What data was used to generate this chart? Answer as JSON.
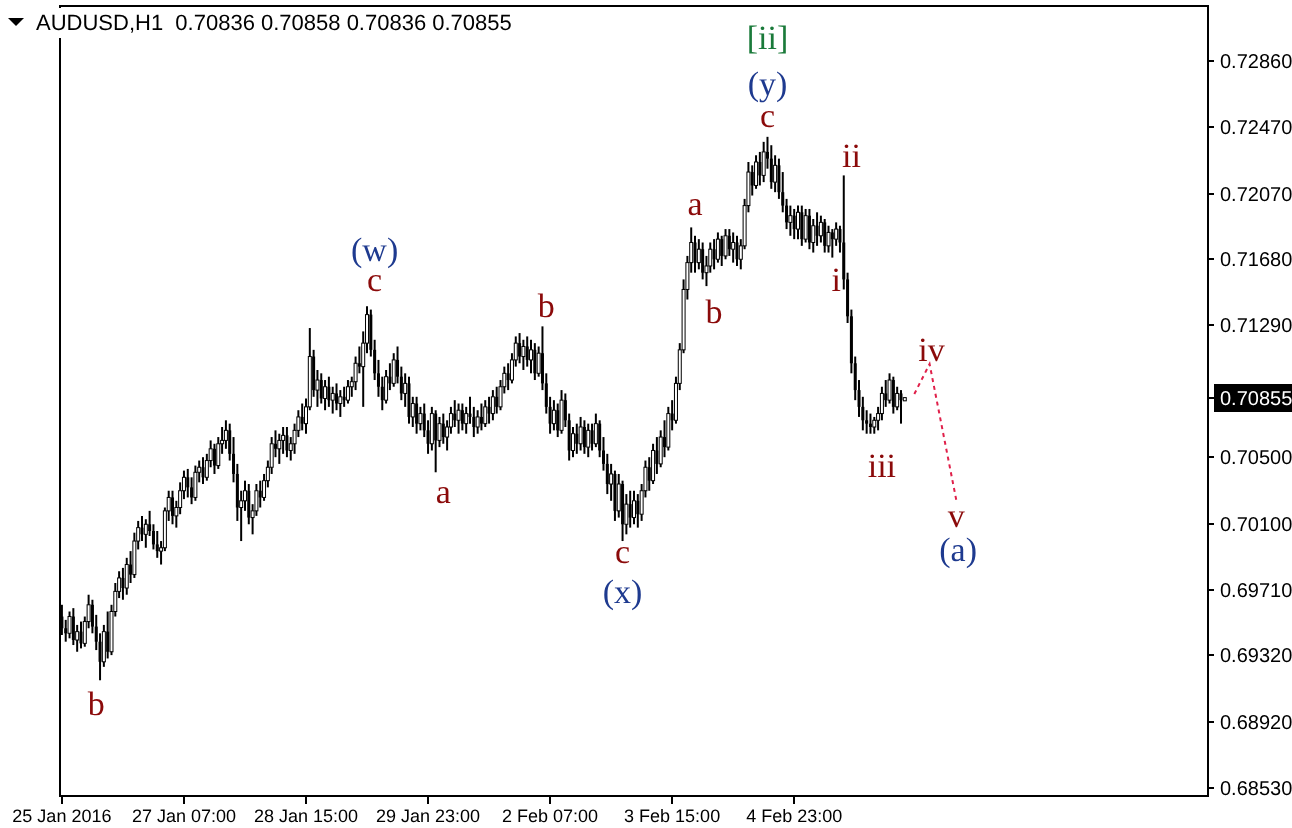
{
  "chart_data": {
    "type": "candlestick",
    "title": "AUDUSD,H1  0.70836 0.70858 0.70836 0.70855",
    "color": "#000000",
    "categories": [
      "25 Jan 2016",
      null,
      null,
      null,
      null,
      null,
      null,
      null,
      null,
      null,
      null,
      null,
      null,
      null,
      null,
      null,
      null,
      null,
      null,
      null,
      null,
      null,
      null,
      null,
      null,
      null,
      null,
      null,
      null,
      null,
      null,
      null,
      "27 Jan 07:00",
      null,
      null,
      null,
      null,
      null,
      null,
      null,
      null,
      null,
      null,
      null,
      null,
      null,
      null,
      null,
      null,
      null,
      null,
      null,
      null,
      null,
      null,
      null,
      null,
      null,
      null,
      null,
      null,
      null,
      null,
      null,
      "28 Jan 15:00",
      null,
      null,
      null,
      null,
      null,
      null,
      null,
      null,
      null,
      null,
      null,
      null,
      null,
      null,
      null,
      null,
      null,
      null,
      null,
      null,
      null,
      null,
      null,
      null,
      null,
      null,
      null,
      null,
      null,
      null,
      null,
      "29 Jan 23:00",
      null,
      null,
      null,
      null,
      null,
      null,
      null,
      null,
      null,
      null,
      null,
      null,
      null,
      null,
      null,
      null,
      null,
      null,
      null,
      null,
      null,
      null,
      null,
      null,
      null,
      null,
      null,
      null,
      null,
      null,
      null,
      "2 Feb 07:00",
      null,
      null,
      null,
      null,
      null,
      null,
      null,
      null,
      null,
      null,
      null,
      null,
      null,
      null,
      null,
      null,
      null,
      null,
      null,
      null,
      null,
      null,
      null,
      null,
      null,
      null,
      null,
      null,
      null,
      null,
      null,
      "3 Feb 15:00",
      null,
      null,
      null,
      null,
      null,
      null,
      null,
      null,
      null,
      null,
      null,
      null,
      null,
      null,
      null,
      null,
      null,
      null,
      null,
      null,
      null,
      null,
      null,
      null,
      null,
      null,
      null,
      null,
      null,
      null,
      null,
      "4 Feb 23:00",
      null,
      null,
      null,
      null,
      null,
      null,
      null,
      null,
      null,
      null,
      null,
      null,
      null,
      null,
      null,
      null,
      null,
      null,
      null,
      null,
      null,
      null,
      null,
      null,
      null,
      null,
      null,
      null,
      null,
      null,
      null,
      null,
      null,
      null,
      null,
      null,
      null,
      null,
      null,
      null,
      null,
      null,
      null,
      null,
      null,
      null,
      null,
      null,
      null,
      null,
      null,
      null,
      null,
      null,
      null,
      null,
      null,
      null,
      null,
      null,
      null,
      null,
      null,
      null,
      null,
      null,
      null,
      null,
      null,
      null,
      null,
      null,
      null,
      null,
      null,
      null,
      null,
      null,
      null,
      null,
      null,
      null,
      null,
      null,
      null,
      null,
      null,
      null,
      null,
      null,
      null,
      null,
      null,
      null,
      null,
      null,
      null,
      null,
      null,
      null,
      null,
      null,
      null,
      null,
      null,
      null,
      null,
      null
    ],
    "ohlc": [
      [
        0.6955,
        0.6962,
        0.6944,
        0.6948
      ],
      [
        0.6948,
        0.6953,
        0.694,
        0.6945
      ],
      [
        0.6945,
        0.6958,
        0.6942,
        0.6955
      ],
      [
        0.6955,
        0.696,
        0.6938,
        0.6941
      ],
      [
        0.6941,
        0.695,
        0.6934,
        0.6946
      ],
      [
        0.6946,
        0.6952,
        0.6936,
        0.6939
      ],
      [
        0.6939,
        0.6955,
        0.6937,
        0.6952
      ],
      [
        0.6952,
        0.6968,
        0.6948,
        0.6962
      ],
      [
        0.6962,
        0.6965,
        0.6945,
        0.6949
      ],
      [
        0.6949,
        0.6956,
        0.6935,
        0.694
      ],
      [
        0.694,
        0.6945,
        0.6917,
        0.6928
      ],
      [
        0.6928,
        0.695,
        0.6925,
        0.6946
      ],
      [
        0.6946,
        0.6958,
        0.693,
        0.6934
      ],
      [
        0.6934,
        0.6962,
        0.6932,
        0.6958
      ],
      [
        0.6958,
        0.6975,
        0.6955,
        0.697
      ],
      [
        0.697,
        0.6982,
        0.6966,
        0.6978
      ],
      [
        0.6978,
        0.6984,
        0.6965,
        0.6972
      ],
      [
        0.6972,
        0.699,
        0.6968,
        0.6986
      ],
      [
        0.6986,
        0.6994,
        0.6975,
        0.698
      ],
      [
        0.698,
        0.7005,
        0.6978,
        0.7
      ],
      [
        0.7,
        0.7012,
        0.6995,
        0.7008
      ],
      [
        0.7008,
        0.7015,
        0.7,
        0.7004
      ],
      [
        0.7004,
        0.7013,
        0.6996,
        0.701
      ],
      [
        0.701,
        0.7018,
        0.7003,
        0.7006
      ],
      [
        0.7006,
        0.701,
        0.6995,
        0.6998
      ],
      [
        0.6998,
        0.7006,
        0.699,
        0.6994
      ],
      [
        0.6994,
        0.7,
        0.6986,
        0.6996
      ],
      [
        0.6996,
        0.702,
        0.6994,
        0.7018
      ],
      [
        0.7018,
        0.703,
        0.7012,
        0.7026
      ],
      [
        0.7026,
        0.703,
        0.701,
        0.7015
      ],
      [
        0.7015,
        0.7024,
        0.7008,
        0.702
      ],
      [
        0.702,
        0.7035,
        0.7016,
        0.703
      ],
      [
        0.703,
        0.7042,
        0.7025,
        0.7038
      ],
      [
        0.7038,
        0.7043,
        0.7026,
        0.7032
      ],
      [
        0.7032,
        0.7038,
        0.7022,
        0.7026
      ],
      [
        0.7026,
        0.7045,
        0.7024,
        0.7041
      ],
      [
        0.7041,
        0.7048,
        0.7035,
        0.7044
      ],
      [
        0.7044,
        0.705,
        0.7034,
        0.7038
      ],
      [
        0.7038,
        0.7052,
        0.7036,
        0.7048
      ],
      [
        0.7048,
        0.706,
        0.7044,
        0.7055
      ],
      [
        0.7055,
        0.7058,
        0.704,
        0.7045
      ],
      [
        0.7045,
        0.7062,
        0.7043,
        0.7058
      ],
      [
        0.7058,
        0.7068,
        0.7052,
        0.706
      ],
      [
        0.706,
        0.7072,
        0.7055,
        0.7066
      ],
      [
        0.7066,
        0.707,
        0.7048,
        0.7052
      ],
      [
        0.7052,
        0.7062,
        0.7035,
        0.704
      ],
      [
        0.704,
        0.7046,
        0.7012,
        0.702
      ],
      [
        0.702,
        0.703,
        0.7,
        0.7024
      ],
      [
        0.7024,
        0.7036,
        0.7018,
        0.703
      ],
      [
        0.703,
        0.7034,
        0.701,
        0.7014
      ],
      [
        0.7014,
        0.7022,
        0.7004,
        0.7018
      ],
      [
        0.7018,
        0.7034,
        0.7015,
        0.703
      ],
      [
        0.703,
        0.7036,
        0.702,
        0.7026
      ],
      [
        0.7026,
        0.704,
        0.7024,
        0.7036
      ],
      [
        0.7036,
        0.7048,
        0.7032,
        0.7044
      ],
      [
        0.7044,
        0.7062,
        0.704,
        0.7058
      ],
      [
        0.7058,
        0.7066,
        0.705,
        0.7055
      ],
      [
        0.7055,
        0.7064,
        0.7046,
        0.706
      ],
      [
        0.706,
        0.7068,
        0.7052,
        0.7063
      ],
      [
        0.7063,
        0.7068,
        0.705,
        0.7054
      ],
      [
        0.7054,
        0.7062,
        0.7048,
        0.7058
      ],
      [
        0.7058,
        0.707,
        0.7052,
        0.7066
      ],
      [
        0.7066,
        0.7078,
        0.7062,
        0.7074
      ],
      [
        0.7074,
        0.7082,
        0.7066,
        0.707
      ],
      [
        0.707,
        0.7085,
        0.7064,
        0.708
      ],
      [
        0.708,
        0.7127,
        0.7078,
        0.711
      ],
      [
        0.711,
        0.7114,
        0.7086,
        0.709
      ],
      [
        0.709,
        0.7102,
        0.708,
        0.7096
      ],
      [
        0.7096,
        0.71,
        0.7082,
        0.7085
      ],
      [
        0.7085,
        0.7096,
        0.7078,
        0.7092
      ],
      [
        0.7092,
        0.7098,
        0.708,
        0.7084
      ],
      [
        0.7084,
        0.7092,
        0.7076,
        0.7088
      ],
      [
        0.7088,
        0.7094,
        0.7078,
        0.7082
      ],
      [
        0.7082,
        0.709,
        0.7074,
        0.7086
      ],
      [
        0.7086,
        0.7092,
        0.708,
        0.7084
      ],
      [
        0.7084,
        0.7096,
        0.7082,
        0.7092
      ],
      [
        0.7092,
        0.7098,
        0.7086,
        0.7095
      ],
      [
        0.7095,
        0.711,
        0.709,
        0.7106
      ],
      [
        0.7106,
        0.7116,
        0.71,
        0.7104
      ],
      [
        0.7104,
        0.7125,
        0.708,
        0.7118
      ],
      [
        0.7118,
        0.714,
        0.7112,
        0.7135
      ],
      [
        0.7135,
        0.7138,
        0.711,
        0.7114
      ],
      [
        0.7114,
        0.712,
        0.7096,
        0.71
      ],
      [
        0.71,
        0.7108,
        0.7086,
        0.7092
      ],
      [
        0.7092,
        0.7098,
        0.7078,
        0.7084
      ],
      [
        0.7084,
        0.7102,
        0.7082,
        0.7098
      ],
      [
        0.7098,
        0.7106,
        0.709,
        0.7094
      ],
      [
        0.7094,
        0.7112,
        0.7092,
        0.7108
      ],
      [
        0.7108,
        0.7116,
        0.7094,
        0.7098
      ],
      [
        0.7098,
        0.7104,
        0.7084,
        0.7088
      ],
      [
        0.7088,
        0.71,
        0.708,
        0.7094
      ],
      [
        0.7094,
        0.7098,
        0.707,
        0.7074
      ],
      [
        0.7074,
        0.7086,
        0.7068,
        0.7082
      ],
      [
        0.7082,
        0.7086,
        0.7064,
        0.707
      ],
      [
        0.707,
        0.708,
        0.7066,
        0.7076
      ],
      [
        0.7076,
        0.7082,
        0.7062,
        0.7066
      ],
      [
        0.7066,
        0.7072,
        0.7052,
        0.7058
      ],
      [
        0.7058,
        0.708,
        0.7054,
        0.7076
      ],
      [
        0.7076,
        0.7078,
        0.7041,
        0.706
      ],
      [
        0.706,
        0.7074,
        0.7056,
        0.707
      ],
      [
        0.707,
        0.7076,
        0.7058,
        0.7062
      ],
      [
        0.7062,
        0.7072,
        0.7054,
        0.7068
      ],
      [
        0.7068,
        0.708,
        0.7064,
        0.7076
      ],
      [
        0.7076,
        0.7084,
        0.7068,
        0.7072
      ],
      [
        0.7072,
        0.7082,
        0.7064,
        0.7078
      ],
      [
        0.7078,
        0.7082,
        0.7066,
        0.707
      ],
      [
        0.707,
        0.708,
        0.7064,
        0.7076
      ],
      [
        0.7076,
        0.7086,
        0.707,
        0.7074
      ],
      [
        0.7074,
        0.708,
        0.7062,
        0.7068
      ],
      [
        0.7068,
        0.7078,
        0.7064,
        0.7074
      ],
      [
        0.7074,
        0.7082,
        0.7066,
        0.707
      ],
      [
        0.707,
        0.7084,
        0.7068,
        0.708
      ],
      [
        0.708,
        0.7086,
        0.707,
        0.7076
      ],
      [
        0.7076,
        0.709,
        0.7072,
        0.7086
      ],
      [
        0.7086,
        0.7092,
        0.7076,
        0.708
      ],
      [
        0.708,
        0.7096,
        0.7078,
        0.7092
      ],
      [
        0.7092,
        0.7104,
        0.7088,
        0.71
      ],
      [
        0.71,
        0.7106,
        0.709,
        0.7096
      ],
      [
        0.7096,
        0.7112,
        0.7094,
        0.7108
      ],
      [
        0.7108,
        0.7122,
        0.7104,
        0.7118
      ],
      [
        0.7118,
        0.7124,
        0.7106,
        0.711
      ],
      [
        0.711,
        0.712,
        0.7102,
        0.7116
      ],
      [
        0.7116,
        0.7122,
        0.7104,
        0.7108
      ],
      [
        0.7108,
        0.712,
        0.71,
        0.7114
      ],
      [
        0.7114,
        0.7118,
        0.7096,
        0.71
      ],
      [
        0.71,
        0.7116,
        0.7098,
        0.7112
      ],
      [
        0.7112,
        0.7128,
        0.709,
        0.7094
      ],
      [
        0.7094,
        0.71,
        0.7076,
        0.708
      ],
      [
        0.708,
        0.7086,
        0.7064,
        0.707
      ],
      [
        0.707,
        0.7084,
        0.7066,
        0.7078
      ],
      [
        0.7078,
        0.7082,
        0.7062,
        0.7066
      ],
      [
        0.7066,
        0.709,
        0.7064,
        0.7084
      ],
      [
        0.7084,
        0.7088,
        0.7068,
        0.7072
      ],
      [
        0.7072,
        0.7076,
        0.7048,
        0.7054
      ],
      [
        0.7054,
        0.7068,
        0.705,
        0.7064
      ],
      [
        0.7064,
        0.707,
        0.7052,
        0.7058
      ],
      [
        0.7058,
        0.7074,
        0.7054,
        0.7068
      ],
      [
        0.7068,
        0.7072,
        0.7052,
        0.7056
      ],
      [
        0.7056,
        0.707,
        0.705,
        0.7066
      ],
      [
        0.7066,
        0.707,
        0.7054,
        0.7058
      ],
      [
        0.7058,
        0.7076,
        0.7056,
        0.707
      ],
      [
        0.707,
        0.7072,
        0.705,
        0.7054
      ],
      [
        0.7054,
        0.7062,
        0.7042,
        0.7046
      ],
      [
        0.7046,
        0.7052,
        0.7028,
        0.7034
      ],
      [
        0.7034,
        0.7046,
        0.7024,
        0.704
      ],
      [
        0.704,
        0.7042,
        0.7012,
        0.7018
      ],
      [
        0.7018,
        0.704,
        0.7014,
        0.7034
      ],
      [
        0.7034,
        0.7036,
        0.7,
        0.701
      ],
      [
        0.701,
        0.7028,
        0.7004,
        0.7022
      ],
      [
        0.7022,
        0.703,
        0.7008,
        0.7014
      ],
      [
        0.7014,
        0.703,
        0.701,
        0.7024
      ],
      [
        0.7024,
        0.7028,
        0.7008,
        0.7016
      ],
      [
        0.7016,
        0.7034,
        0.7012,
        0.703
      ],
      [
        0.703,
        0.7048,
        0.7026,
        0.7044
      ],
      [
        0.7044,
        0.705,
        0.703,
        0.7036
      ],
      [
        0.7036,
        0.7058,
        0.7034,
        0.7054
      ],
      [
        0.7054,
        0.7062,
        0.704,
        0.7046
      ],
      [
        0.7046,
        0.7066,
        0.7044,
        0.7062
      ],
      [
        0.7062,
        0.7072,
        0.705,
        0.7056
      ],
      [
        0.7056,
        0.708,
        0.7054,
        0.7076
      ],
      [
        0.7076,
        0.7084,
        0.7066,
        0.7072
      ],
      [
        0.7072,
        0.7098,
        0.707,
        0.7094
      ],
      [
        0.7094,
        0.7118,
        0.709,
        0.7114
      ],
      [
        0.7114,
        0.7156,
        0.7112,
        0.715
      ],
      [
        0.715,
        0.717,
        0.7144,
        0.7166
      ],
      [
        0.7166,
        0.7187,
        0.716,
        0.7178
      ],
      [
        0.7178,
        0.7182,
        0.716,
        0.7166
      ],
      [
        0.7166,
        0.718,
        0.7162,
        0.7174
      ],
      [
        0.7174,
        0.7178,
        0.7156,
        0.716
      ],
      [
        0.716,
        0.717,
        0.7152,
        0.7164
      ],
      [
        0.7164,
        0.7178,
        0.716,
        0.7174
      ],
      [
        0.7174,
        0.718,
        0.7162,
        0.7168
      ],
      [
        0.7168,
        0.7184,
        0.7166,
        0.718
      ],
      [
        0.718,
        0.7182,
        0.7164,
        0.717
      ],
      [
        0.717,
        0.7186,
        0.7168,
        0.7182
      ],
      [
        0.7182,
        0.7186,
        0.717,
        0.7174
      ],
      [
        0.7174,
        0.7184,
        0.7166,
        0.7178
      ],
      [
        0.7178,
        0.7182,
        0.7164,
        0.7168
      ],
      [
        0.7168,
        0.718,
        0.7162,
        0.7176
      ],
      [
        0.7176,
        0.7204,
        0.7174,
        0.72
      ],
      [
        0.72,
        0.7226,
        0.7196,
        0.722
      ],
      [
        0.722,
        0.7224,
        0.7206,
        0.7212
      ],
      [
        0.7212,
        0.723,
        0.721,
        0.7226
      ],
      [
        0.7226,
        0.7232,
        0.7212,
        0.7218
      ],
      [
        0.7218,
        0.7238,
        0.7214,
        0.7232
      ],
      [
        0.7232,
        0.7241,
        0.7222,
        0.7228
      ],
      [
        0.7228,
        0.7236,
        0.721,
        0.7214
      ],
      [
        0.7214,
        0.723,
        0.7208,
        0.7224
      ],
      [
        0.7224,
        0.7228,
        0.7204,
        0.7208
      ],
      [
        0.7208,
        0.722,
        0.7196,
        0.72
      ],
      [
        0.72,
        0.7204,
        0.7186,
        0.719
      ],
      [
        0.719,
        0.72,
        0.7182,
        0.7194
      ],
      [
        0.7194,
        0.7198,
        0.718,
        0.7186
      ],
      [
        0.7186,
        0.72,
        0.718,
        0.7196
      ],
      [
        0.7196,
        0.72,
        0.7176,
        0.718
      ],
      [
        0.718,
        0.7198,
        0.7178,
        0.7194
      ],
      [
        0.7194,
        0.7198,
        0.7174,
        0.7178
      ],
      [
        0.7178,
        0.7192,
        0.7172,
        0.7188
      ],
      [
        0.7188,
        0.7196,
        0.7176,
        0.7182
      ],
      [
        0.7182,
        0.7194,
        0.7178,
        0.719
      ],
      [
        0.719,
        0.7192,
        0.7172,
        0.7176
      ],
      [
        0.7176,
        0.7188,
        0.7172,
        0.7184
      ],
      [
        0.7184,
        0.7186,
        0.7169,
        0.718
      ],
      [
        0.718,
        0.719,
        0.7176,
        0.7186
      ],
      [
        0.7186,
        0.7188,
        0.7172,
        0.7178
      ],
      [
        0.7178,
        0.7218,
        0.715,
        0.7156
      ],
      [
        0.7156,
        0.716,
        0.713,
        0.7134
      ],
      [
        0.7134,
        0.7138,
        0.71,
        0.7106
      ],
      [
        0.7106,
        0.711,
        0.7084,
        0.709
      ],
      [
        0.709,
        0.7096,
        0.7074,
        0.708
      ],
      [
        0.708,
        0.7086,
        0.7066,
        0.7072
      ],
      [
        0.7072,
        0.7078,
        0.7064,
        0.707
      ],
      [
        0.707,
        0.7076,
        0.7064,
        0.7068
      ],
      [
        0.7068,
        0.7074,
        0.7064,
        0.7072
      ],
      [
        0.7072,
        0.708,
        0.7066,
        0.7076
      ],
      [
        0.7076,
        0.7092,
        0.7072,
        0.7088
      ],
      [
        0.7088,
        0.7096,
        0.708,
        0.7084
      ],
      [
        0.7084,
        0.71,
        0.7082,
        0.7096
      ],
      [
        0.7096,
        0.7098,
        0.7076,
        0.708
      ],
      [
        0.708,
        0.7092,
        0.7078,
        0.7088
      ],
      [
        0.7088,
        0.709,
        0.707,
        0.7084
      ],
      [
        0.70836,
        0.70858,
        0.70836,
        0.70855
      ],
      null,
      null,
      null,
      null,
      null,
      null,
      null,
      null,
      null,
      null,
      null,
      null,
      null,
      null,
      null,
      null,
      null,
      null,
      null,
      null,
      null,
      null,
      null,
      null,
      null,
      null,
      null,
      null,
      null,
      null,
      null,
      null,
      null,
      null,
      null,
      null,
      null,
      null,
      null,
      null,
      null,
      null,
      null,
      null,
      null,
      null,
      null,
      null,
      null,
      null,
      null,
      null,
      null,
      null,
      null,
      null,
      null,
      null,
      null,
      null,
      null,
      null,
      null,
      null,
      null,
      null,
      null,
      null,
      null,
      null,
      null,
      null,
      null,
      null,
      null,
      null,
      null,
      null,
      null
    ],
    "ylim": [
      0.6848,
      0.7319
    ],
    "yticks": [
      {
        "value": 0.7286,
        "label": "0.72860"
      },
      {
        "value": 0.7247,
        "label": "0.72470"
      },
      {
        "value": 0.7207,
        "label": "0.72070"
      },
      {
        "value": 0.7168,
        "label": "0.71680"
      },
      {
        "value": 0.7129,
        "label": "0.71290"
      },
      {
        "value": 0.705,
        "label": "0.70500"
      },
      {
        "value": 0.701,
        "label": "0.70100"
      },
      {
        "value": 0.6971,
        "label": "0.69710"
      },
      {
        "value": 0.6932,
        "label": "0.69320"
      },
      {
        "value": 0.6892,
        "label": "0.68920"
      },
      {
        "value": 0.6853,
        "label": "0.68530"
      }
    ],
    "annotations": [
      "b",
      "(w)",
      "c",
      "a",
      "b",
      "c",
      "(x)",
      "a",
      "b",
      "[ii]",
      "(y)",
      "c",
      "ii",
      "i",
      "iii",
      "iv",
      "v",
      "(a)",
      "0.70855"
    ]
  }
}
